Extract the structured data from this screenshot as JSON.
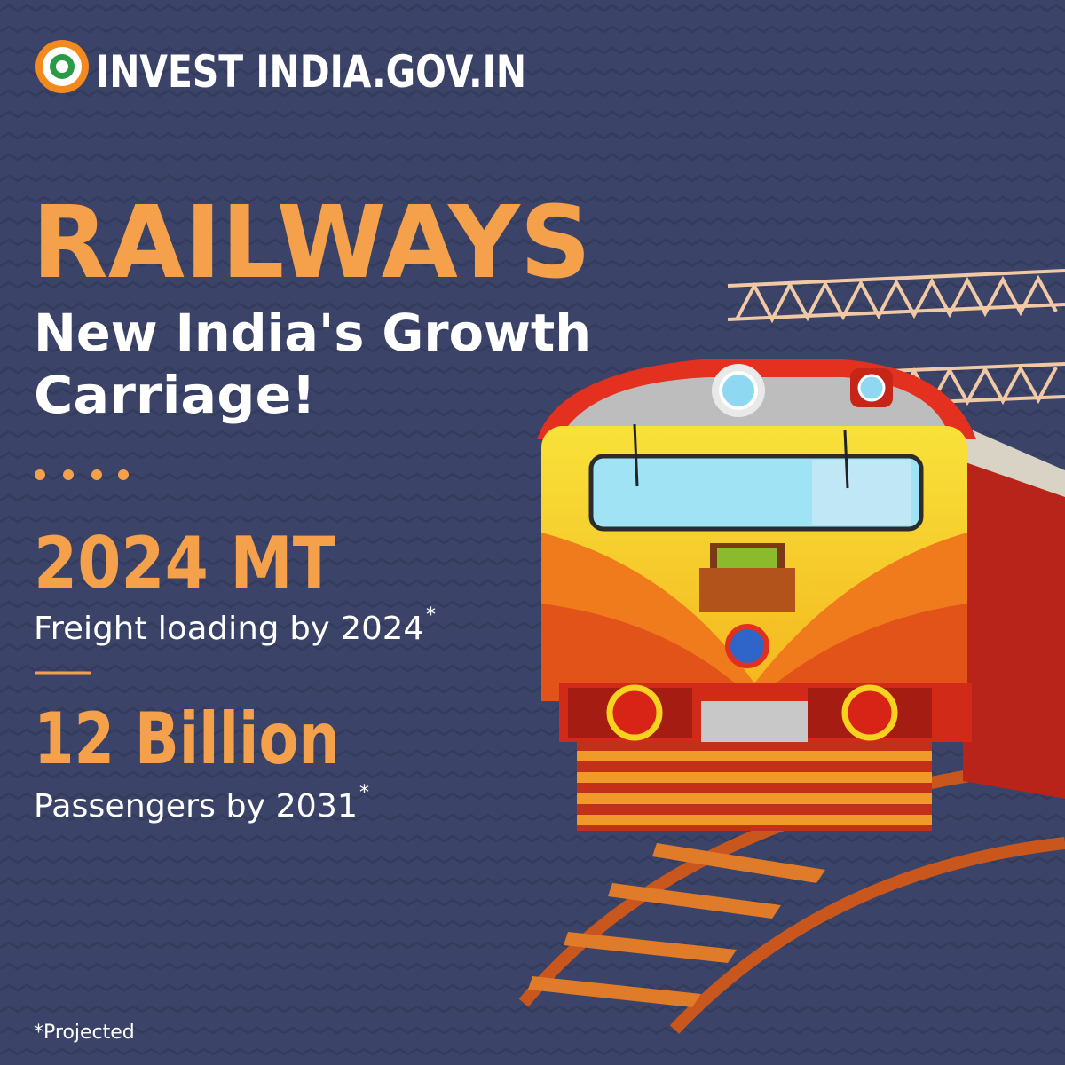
{
  "header": {
    "brand": "INVEST INDIA.GOV.IN"
  },
  "headline": {
    "title": "RAILWAYS",
    "subtitle_lines": [
      "New India's Growth",
      "Carriage!"
    ]
  },
  "stats": [
    {
      "value": "2024 MT",
      "caption": "Freight loading by 2024",
      "marker": "*"
    },
    {
      "value": "12 Billion",
      "caption": "Passengers by 2031",
      "marker": "*"
    }
  ],
  "footnote": "*Projected"
}
